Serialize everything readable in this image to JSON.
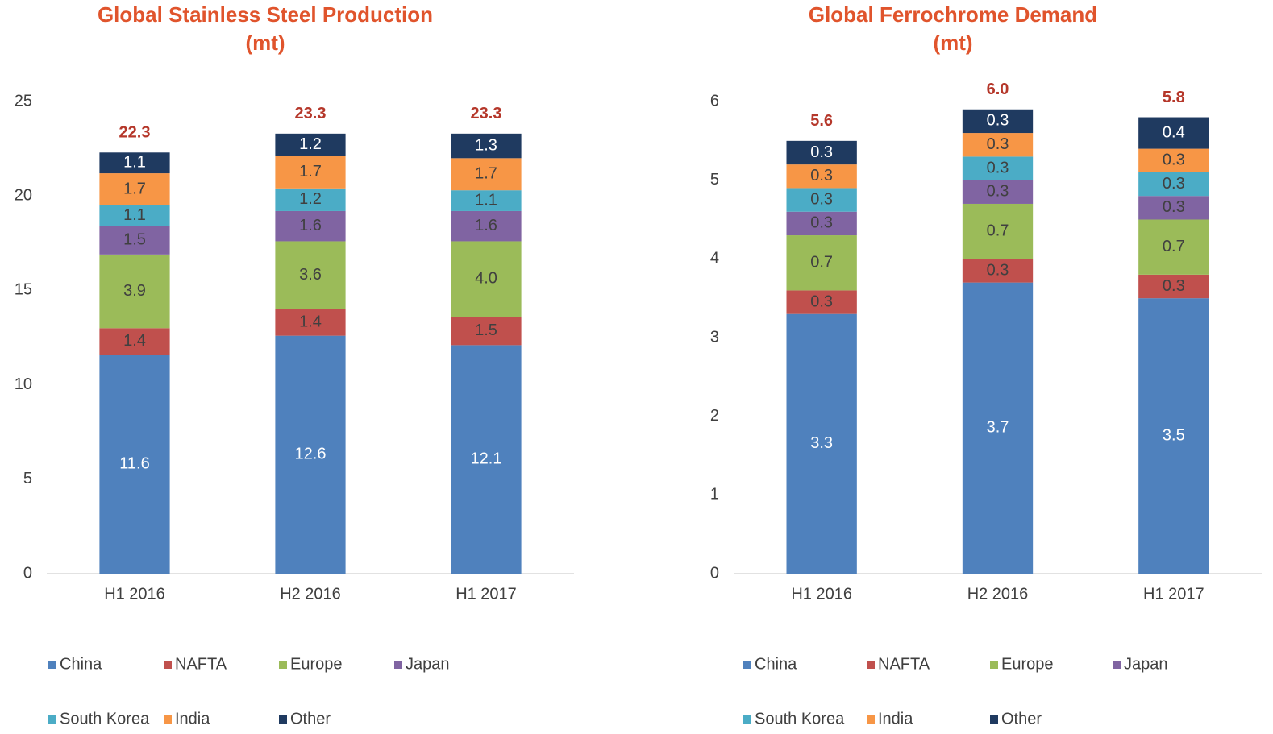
{
  "chart_data": [
    {
      "type": "stacked_bar",
      "title": "Global Stainless Steel Production",
      "subtitle": "(mt)",
      "categories": [
        "H1 2016",
        "H2 2016",
        "H1 2017"
      ],
      "series": [
        {
          "name": "China",
          "color": "#4f81bd",
          "values": [
            11.6,
            12.6,
            12.1
          ]
        },
        {
          "name": "NAFTA",
          "color": "#c0504d",
          "values": [
            1.4,
            1.4,
            1.5
          ]
        },
        {
          "name": "Europe",
          "color": "#9bbb59",
          "values": [
            3.9,
            3.6,
            4.0
          ],
          "value_labels": [
            "3.9",
            "3.6",
            "4.0"
          ]
        },
        {
          "name": "Japan",
          "color": "#8064a2",
          "values": [
            1.5,
            1.6,
            1.6
          ]
        },
        {
          "name": "South Korea",
          "color": "#4bacc6",
          "values": [
            1.1,
            1.2,
            1.1
          ]
        },
        {
          "name": "India",
          "color": "#f79646",
          "values": [
            1.7,
            1.7,
            1.7
          ]
        },
        {
          "name": "Other",
          "color": "#1f3a60",
          "values": [
            1.1,
            1.2,
            1.3
          ]
        }
      ],
      "totals": [
        22.3,
        23.3,
        23.3
      ],
      "ylim": [
        0,
        25
      ],
      "yticks": [
        0,
        5,
        10,
        15,
        20,
        25
      ],
      "legend": "bottom"
    },
    {
      "type": "stacked_bar",
      "title": "Global Ferrochrome Demand",
      "subtitle": "(mt)",
      "categories": [
        "H1 2016",
        "H2 2016",
        "H1 2017"
      ],
      "series": [
        {
          "name": "China",
          "color": "#4f81bd",
          "values": [
            3.3,
            3.7,
            3.5
          ]
        },
        {
          "name": "NAFTA",
          "color": "#c0504d",
          "values": [
            0.3,
            0.3,
            0.3
          ]
        },
        {
          "name": "Europe",
          "color": "#9bbb59",
          "values": [
            0.7,
            0.7,
            0.7
          ]
        },
        {
          "name": "Japan",
          "color": "#8064a2",
          "values": [
            0.3,
            0.3,
            0.3
          ]
        },
        {
          "name": "South Korea",
          "color": "#4bacc6",
          "values": [
            0.3,
            0.3,
            0.3
          ]
        },
        {
          "name": "India",
          "color": "#f79646",
          "values": [
            0.3,
            0.3,
            0.3
          ]
        },
        {
          "name": "Other",
          "color": "#1f3a60",
          "values": [
            0.3,
            0.3,
            0.4
          ]
        }
      ],
      "totals": [
        5.6,
        6.0,
        5.8
      ],
      "total_labels": [
        "5.6",
        "6.0",
        "5.8"
      ],
      "ylim": [
        0,
        6
      ],
      "yticks": [
        0,
        1,
        2,
        3,
        4,
        5,
        6
      ],
      "legend": "bottom"
    }
  ]
}
